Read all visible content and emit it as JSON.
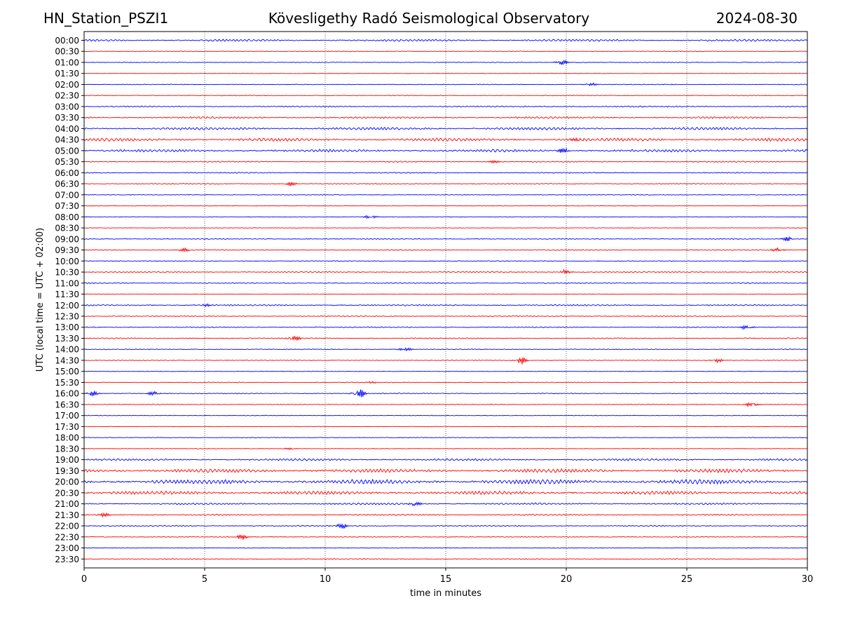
{
  "header": {
    "station": "HN_Station_PSZI1",
    "observatory": "Kövesligethy Radó Seismological Observatory",
    "date": "2024-08-30"
  },
  "chart_data": {
    "type": "line",
    "title": "Kövesligethy Radó Seismological Observatory",
    "xlabel": "time in minutes",
    "ylabel": "UTC (local time = UTC + 02:00)",
    "xlim": [
      0,
      30
    ],
    "x_ticks": [
      0,
      5,
      10,
      15,
      20,
      25,
      30
    ],
    "x_tick_labels": [
      "0",
      "5",
      "10",
      "15",
      "20",
      "25",
      "30"
    ],
    "grid": "vertical dotted at x = 5, 10, 15, 20, 25",
    "row_labels": [
      "00:00",
      "00:30",
      "01:00",
      "01:30",
      "02:00",
      "02:30",
      "03:00",
      "03:30",
      "04:00",
      "04:30",
      "05:00",
      "05:30",
      "06:00",
      "06:30",
      "07:00",
      "07:30",
      "08:00",
      "08:30",
      "09:00",
      "09:30",
      "10:00",
      "10:30",
      "11:00",
      "11:30",
      "12:00",
      "12:30",
      "13:00",
      "13:30",
      "14:00",
      "14:30",
      "15:00",
      "15:30",
      "16:00",
      "16:30",
      "17:00",
      "17:30",
      "18:00",
      "18:30",
      "19:00",
      "19:30",
      "20:00",
      "20:30",
      "21:00",
      "21:30",
      "22:00",
      "22:30",
      "23:00",
      "23:30"
    ],
    "trace_colors": [
      "#0000ff",
      "#ff0000"
    ],
    "row_activity": [
      0.35,
      0.08,
      0.08,
      0.04,
      0.08,
      0.1,
      0.18,
      0.3,
      0.45,
      0.55,
      0.45,
      0.18,
      0.15,
      0.12,
      0.08,
      0.02,
      0.05,
      0.04,
      0.12,
      0.14,
      0.12,
      0.18,
      0.15,
      0.06,
      0.22,
      0.14,
      0.14,
      0.14,
      0.1,
      0.1,
      0.05,
      0.1,
      0.12,
      0.1,
      0.06,
      0.06,
      0.06,
      0.07,
      0.35,
      0.65,
      0.8,
      0.6,
      0.3,
      0.22,
      0.18,
      0.1,
      0.06,
      0.12
    ],
    "events": [
      {
        "row": "01:00",
        "minute": 19.8,
        "amplitude": 0.7
      },
      {
        "row": "02:00",
        "minute": 21.0,
        "amplitude": 0.4
      },
      {
        "row": "04:30",
        "minute": 20.5,
        "amplitude": 0.6
      },
      {
        "row": "05:00",
        "minute": 19.9,
        "amplitude": 0.5
      },
      {
        "row": "05:30",
        "minute": 17.0,
        "amplitude": 0.3
      },
      {
        "row": "06:30",
        "minute": 8.6,
        "amplitude": 0.4
      },
      {
        "row": "08:00",
        "minute": 11.9,
        "amplitude": 0.5
      },
      {
        "row": "09:00",
        "minute": 29.2,
        "amplitude": 0.5
      },
      {
        "row": "09:30",
        "minute": 4.2,
        "amplitude": 0.4
      },
      {
        "row": "09:30",
        "minute": 28.8,
        "amplitude": 0.5
      },
      {
        "row": "10:30",
        "minute": 19.9,
        "amplitude": 0.5
      },
      {
        "row": "12:00",
        "minute": 5.0,
        "amplitude": 0.4
      },
      {
        "row": "13:00",
        "minute": 27.5,
        "amplitude": 0.5
      },
      {
        "row": "13:30",
        "minute": 8.7,
        "amplitude": 0.7
      },
      {
        "row": "14:00",
        "minute": 13.3,
        "amplitude": 0.5
      },
      {
        "row": "14:30",
        "minute": 18.1,
        "amplitude": 0.8
      },
      {
        "row": "14:30",
        "minute": 26.2,
        "amplitude": 0.5
      },
      {
        "row": "15:30",
        "minute": 11.8,
        "amplitude": 0.4
      },
      {
        "row": "16:00",
        "minute": 0.3,
        "amplitude": 0.6
      },
      {
        "row": "16:00",
        "minute": 2.9,
        "amplitude": 0.5
      },
      {
        "row": "16:00",
        "minute": 11.4,
        "amplitude": 1.0
      },
      {
        "row": "16:30",
        "minute": 27.7,
        "amplitude": 0.6
      },
      {
        "row": "18:30",
        "minute": 8.6,
        "amplitude": 0.3
      },
      {
        "row": "21:00",
        "minute": 13.7,
        "amplitude": 0.6
      },
      {
        "row": "21:30",
        "minute": 0.8,
        "amplitude": 0.4
      },
      {
        "row": "22:00",
        "minute": 10.7,
        "amplitude": 0.5
      },
      {
        "row": "22:30",
        "minute": 6.6,
        "amplitude": 0.6
      }
    ]
  }
}
